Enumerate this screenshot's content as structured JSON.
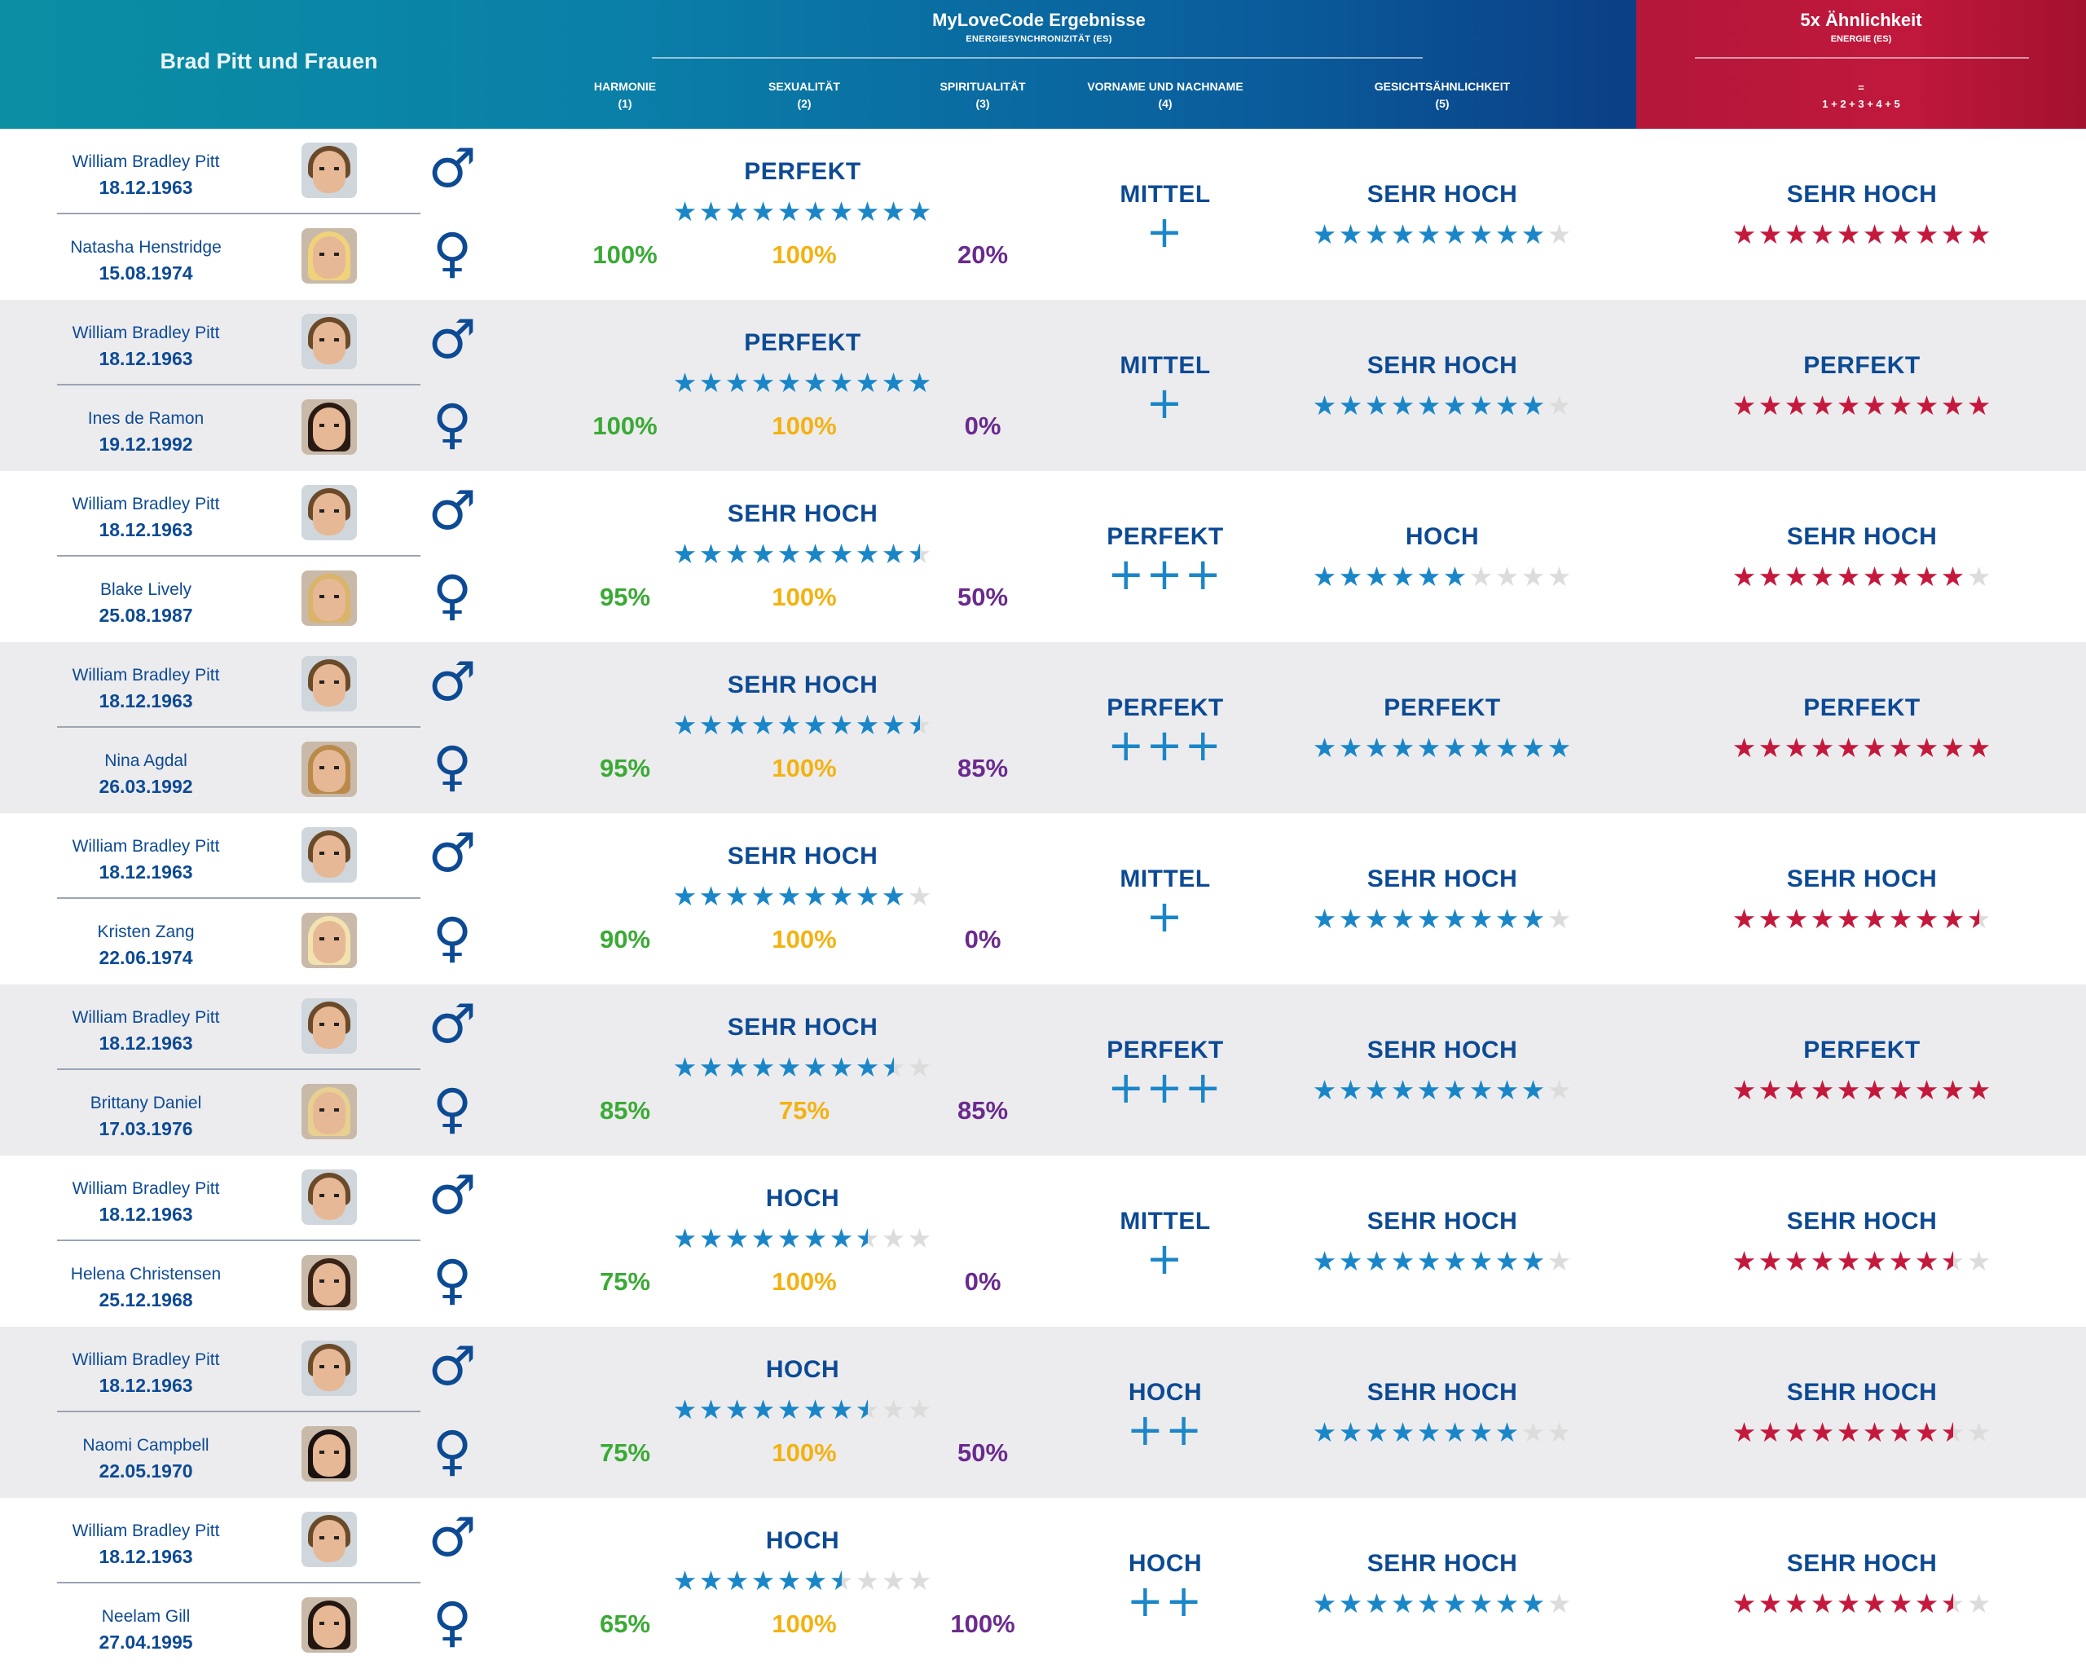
{
  "header": {
    "left_title": "Brad Pitt und Frauen",
    "main_title": "MyLoveCode Ergebnisse",
    "main_subtitle": "ENERGIESYNCHRONIZITÄT (ES)",
    "columns": [
      {
        "label": "HARMONIE",
        "num": "(1)"
      },
      {
        "label": "SEXUALITÄT",
        "num": "(2)"
      },
      {
        "label": "SPIRITUALITÄT",
        "num": "(3)"
      },
      {
        "label": "VORNAME UND NACHNAME",
        "num": "(4)"
      },
      {
        "label": "GESICHTSÄHNLICHKEIT",
        "num": "(5)"
      }
    ],
    "right_title": "5x Ähnlichkeit",
    "right_subtitle": "ENERGIE (ES)",
    "right_eq": "=",
    "right_formula": "1 + 2 + 3 + 4 + 5"
  },
  "colors": {
    "header_teal": "#0a8fa3",
    "header_blue": "#0b3f86",
    "header_red": "#c0183c",
    "text_blue": "#0d4a94",
    "star_blue": "#1a86c8",
    "star_red": "#c4193c",
    "harmony_green": "#3aaa35",
    "sexuality_yellow": "#f3b212",
    "spirituality_purple": "#6a2a8e"
  },
  "icons": {
    "male": "male-symbol-icon",
    "female": "female-symbol-icon",
    "star": "star-icon",
    "male_glyph": "♂",
    "female_glyph": "♀"
  },
  "rows": [
    {
      "man": {
        "name": "William Bradley Pitt",
        "date": "18.12.1963"
      },
      "woman": {
        "name": "Natasha Henstridge",
        "date": "15.08.1974"
      },
      "es_label": "PERFEKT",
      "es_stars": 10,
      "harmony": "100%",
      "sexuality": "100%",
      "spirituality": "20%",
      "name_label": "MITTEL",
      "name_plus": "+",
      "face_label": "SEHR HOCH",
      "face_stars": 9,
      "total_label": "SEHR HOCH",
      "total_stars": 10
    },
    {
      "man": {
        "name": "William Bradley Pitt",
        "date": "18.12.1963"
      },
      "woman": {
        "name": "Ines de Ramon",
        "date": "19.12.1992"
      },
      "es_label": "PERFEKT",
      "es_stars": 10,
      "harmony": "100%",
      "sexuality": "100%",
      "spirituality": "0%",
      "name_label": "MITTEL",
      "name_plus": "+",
      "face_label": "SEHR HOCH",
      "face_stars": 9,
      "total_label": "PERFEKT",
      "total_stars": 10
    },
    {
      "man": {
        "name": "William Bradley Pitt",
        "date": "18.12.1963"
      },
      "woman": {
        "name": "Blake Lively",
        "date": "25.08.1987"
      },
      "es_label": "SEHR HOCH",
      "es_stars": 9.5,
      "harmony": "95%",
      "sexuality": "100%",
      "spirituality": "50%",
      "name_label": "PERFEKT",
      "name_plus": "+++",
      "face_label": "HOCH",
      "face_stars": 6,
      "total_label": "SEHR HOCH",
      "total_stars": 9
    },
    {
      "man": {
        "name": "William Bradley Pitt",
        "date": "18.12.1963"
      },
      "woman": {
        "name": "Nina Agdal",
        "date": "26.03.1992"
      },
      "es_label": "SEHR HOCH",
      "es_stars": 9.5,
      "harmony": "95%",
      "sexuality": "100%",
      "spirituality": "85%",
      "name_label": "PERFEKT",
      "name_plus": "+++",
      "face_label": "PERFEKT",
      "face_stars": 10,
      "total_label": "PERFEKT",
      "total_stars": 10
    },
    {
      "man": {
        "name": "William Bradley Pitt",
        "date": "18.12.1963"
      },
      "woman": {
        "name": "Kristen Zang",
        "date": "22.06.1974"
      },
      "es_label": "SEHR HOCH",
      "es_stars": 9,
      "harmony": "90%",
      "sexuality": "100%",
      "spirituality": "0%",
      "name_label": "MITTEL",
      "name_plus": "+",
      "face_label": "SEHR HOCH",
      "face_stars": 9,
      "total_label": "SEHR HOCH",
      "total_stars": 9.5
    },
    {
      "man": {
        "name": "William Bradley Pitt",
        "date": "18.12.1963"
      },
      "woman": {
        "name": "Brittany Daniel",
        "date": "17.03.1976"
      },
      "es_label": "SEHR HOCH",
      "es_stars": 8.5,
      "harmony": "85%",
      "sexuality": "75%",
      "spirituality": "85%",
      "name_label": "PERFEKT",
      "name_plus": "+++",
      "face_label": "SEHR HOCH",
      "face_stars": 9,
      "total_label": "PERFEKT",
      "total_stars": 10
    },
    {
      "man": {
        "name": "William Bradley Pitt",
        "date": "18.12.1963"
      },
      "woman": {
        "name": "Helena Christensen",
        "date": "25.12.1968"
      },
      "es_label": "HOCH",
      "es_stars": 7.5,
      "harmony": "75%",
      "sexuality": "100%",
      "spirituality": "0%",
      "name_label": "MITTEL",
      "name_plus": "+",
      "face_label": "SEHR HOCH",
      "face_stars": 9,
      "total_label": "SEHR HOCH",
      "total_stars": 8.5
    },
    {
      "man": {
        "name": "William Bradley Pitt",
        "date": "18.12.1963"
      },
      "woman": {
        "name": "Naomi Campbell",
        "date": "22.05.1970"
      },
      "es_label": "HOCH",
      "es_stars": 7.5,
      "harmony": "75%",
      "sexuality": "100%",
      "spirituality": "50%",
      "name_label": "HOCH",
      "name_plus": "++",
      "face_label": "SEHR HOCH",
      "face_stars": 8,
      "total_label": "SEHR HOCH",
      "total_stars": 8.5
    },
    {
      "man": {
        "name": "William Bradley Pitt",
        "date": "18.12.1963"
      },
      "woman": {
        "name": "Neelam Gill",
        "date": "27.04.1995"
      },
      "es_label": "HOCH",
      "es_stars": 6.5,
      "harmony": "65%",
      "sexuality": "100%",
      "spirituality": "100%",
      "name_label": "HOCH",
      "name_plus": "++",
      "face_label": "SEHR HOCH",
      "face_stars": 9,
      "total_label": "SEHR HOCH",
      "total_stars": 8.5
    }
  ]
}
